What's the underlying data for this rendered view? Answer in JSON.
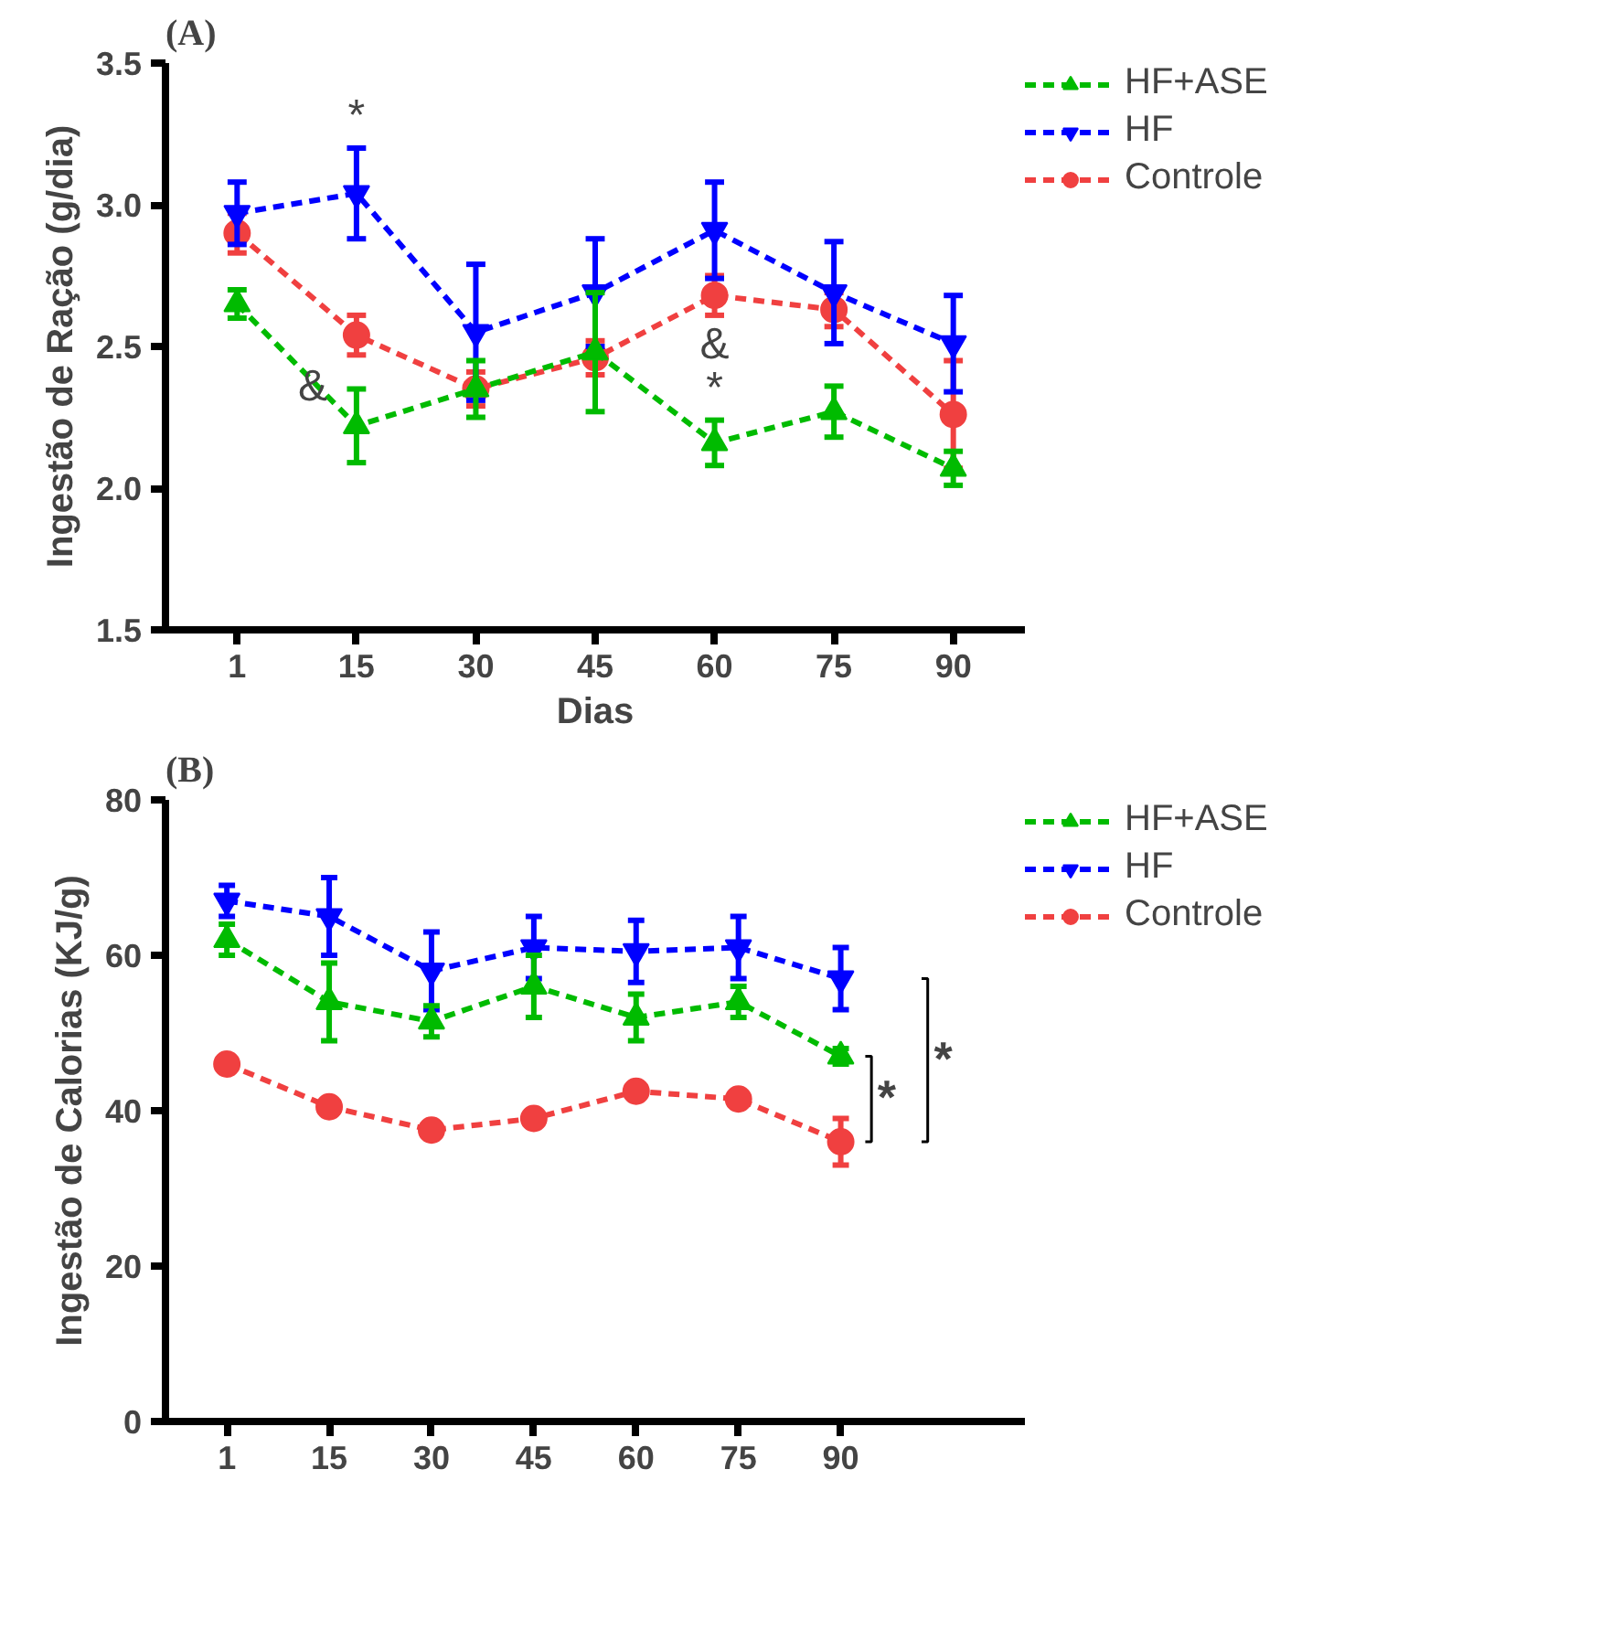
{
  "chart_data": [
    {
      "type": "line",
      "title": "(A)",
      "xlabel": "Dias",
      "ylabel": "Ingestão de Ração (g/dia)",
      "categories": [
        "1",
        "15",
        "30",
        "45",
        "60",
        "75",
        "90"
      ],
      "ylim": [
        1.5,
        3.5
      ],
      "yticks": [
        1.5,
        {
          "value": 2,
          "label": "2.0"
        },
        2.5,
        {
          "value": 3,
          "label": "3.0"
        },
        3.5
      ],
      "legend": "top right",
      "line_style": "dashed",
      "grid": false,
      "series": [
        {
          "name": "HF+ASE",
          "color": "#00bb00",
          "marker": "triangle",
          "values": [
            2.65,
            2.22,
            2.35,
            2.48,
            2.16,
            2.27,
            2.07
          ],
          "errors": [
            0.05,
            0.13,
            0.1,
            0.21,
            0.08,
            0.09,
            0.06
          ]
        },
        {
          "name": "HF",
          "color": "#0000ff",
          "marker": "triangle_down",
          "values": [
            2.97,
            3.04,
            2.55,
            2.69,
            2.91,
            2.69,
            2.51
          ],
          "errors": [
            0.11,
            0.16,
            0.24,
            0.19,
            0.17,
            0.18,
            0.17
          ]
        },
        {
          "name": "Controle",
          "color": "#f04040",
          "marker": "circle",
          "values": [
            2.9,
            2.54,
            2.35,
            2.46,
            2.68,
            2.63,
            2.26
          ],
          "errors": [
            0.07,
            0.07,
            0.06,
            0.06,
            0.07,
            0.06,
            0.19
          ]
        }
      ],
      "annotations": [
        {
          "text": "*",
          "x": "15",
          "y": 3.04
        },
        {
          "text": "&",
          "x": "15",
          "y": 2.22
        },
        {
          "text": "*",
          "x": "60",
          "y": 2.16
        },
        {
          "text": "&",
          "x": "60",
          "y": 2.16
        }
      ]
    },
    {
      "type": "line",
      "title": "(B)",
      "ylabel": "Ingestão de Calorias (KJ/g)",
      "categories": [
        "1",
        "15",
        "30",
        "45",
        "60",
        "75",
        "90"
      ],
      "ylim": [
        0,
        80
      ],
      "yticks": [
        0,
        20,
        40,
        60,
        80
      ],
      "legend": "top right",
      "line_style": "dashed",
      "grid": false,
      "series": [
        {
          "name": "HF+ASE",
          "color": "#00bb00",
          "marker": "triangle",
          "values": [
            62,
            54,
            51.5,
            56,
            52,
            54,
            47
          ],
          "errors": [
            2,
            5,
            2,
            4,
            3,
            2,
            1
          ]
        },
        {
          "name": "HF",
          "color": "#0000ff",
          "marker": "triangle_down",
          "values": [
            67,
            65,
            58,
            61,
            60.5,
            61,
            57
          ],
          "errors": [
            2,
            5,
            5,
            4,
            4,
            4,
            4
          ]
        },
        {
          "name": "Controle",
          "color": "#f04040",
          "marker": "circle",
          "values": [
            46,
            40.5,
            37.5,
            39,
            42.5,
            41.5,
            36
          ],
          "errors": [
            1,
            1,
            1,
            1,
            1,
            1,
            3
          ]
        }
      ],
      "annotations": [
        "*",
        "*"
      ]
    }
  ]
}
